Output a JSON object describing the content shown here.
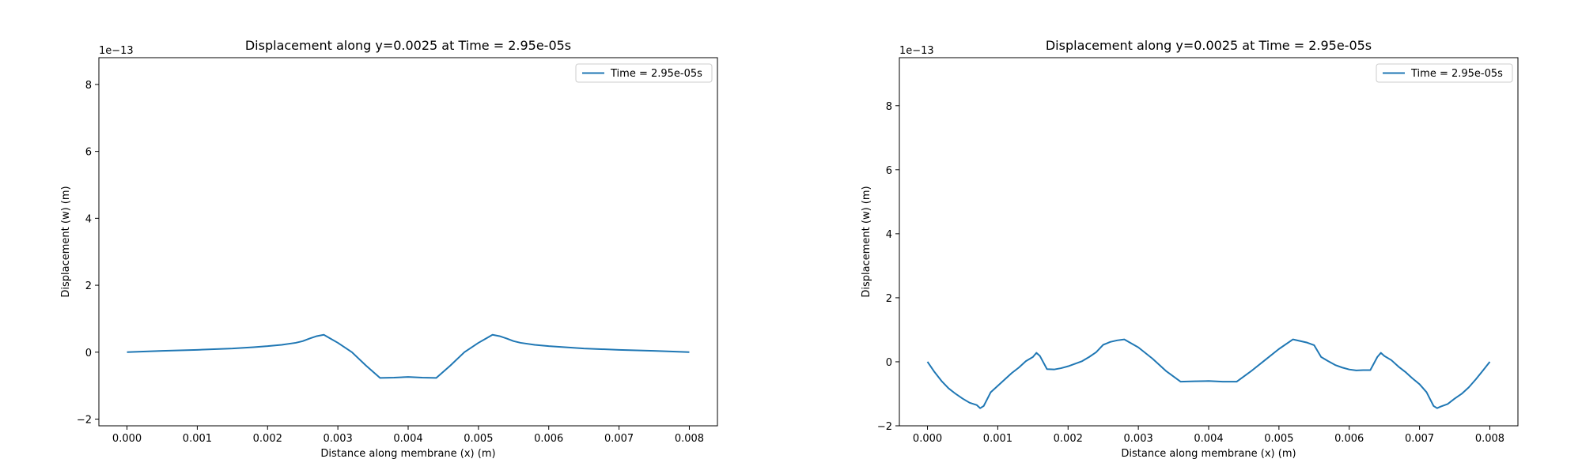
{
  "chart_data": [
    {
      "type": "line",
      "title": "Displacement along y=0.0025 at Time = 2.95e-05s",
      "xlabel": "Distance along membrane (x) (m)",
      "ylabel": "Displacement (w) (m)",
      "y_offset_label": "1e−13",
      "xlim": [
        -0.0004,
        0.0084
      ],
      "ylim": [
        -2.2,
        8.8
      ],
      "x_ticks": [
        0.0,
        0.001,
        0.002,
        0.003,
        0.004,
        0.005,
        0.006,
        0.007,
        0.008
      ],
      "x_tick_labels": [
        "0.000",
        "0.001",
        "0.002",
        "0.003",
        "0.004",
        "0.005",
        "0.006",
        "0.007",
        "0.008"
      ],
      "y_ticks": [
        -2,
        0,
        2,
        4,
        6,
        8
      ],
      "y_tick_labels": [
        "−2",
        "0",
        "2",
        "4",
        "6",
        "8"
      ],
      "grid": false,
      "legend": "upper right",
      "series": [
        {
          "name": "Time = 2.95e-05s",
          "color": "#1f77b4",
          "x": [
            0.0,
            0.0005,
            0.001,
            0.0015,
            0.0018,
            0.002,
            0.0022,
            0.0024,
            0.0025,
            0.0026,
            0.0027,
            0.0028,
            0.0029,
            0.003,
            0.0032,
            0.0034,
            0.0036,
            0.0038,
            0.004,
            0.0042,
            0.0044,
            0.0046,
            0.0048,
            0.005,
            0.0051,
            0.0052,
            0.0053,
            0.0054,
            0.0055,
            0.0056,
            0.0058,
            0.006,
            0.0065,
            0.007,
            0.0075,
            0.008
          ],
          "y": [
            0.0,
            0.04,
            0.07,
            0.11,
            0.15,
            0.18,
            0.22,
            0.28,
            0.33,
            0.41,
            0.48,
            0.52,
            0.4,
            0.28,
            0.0,
            -0.4,
            -0.77,
            -0.76,
            -0.74,
            -0.76,
            -0.77,
            -0.4,
            0.0,
            0.28,
            0.4,
            0.52,
            0.48,
            0.41,
            0.33,
            0.28,
            0.22,
            0.18,
            0.11,
            0.07,
            0.04,
            0.0
          ]
        }
      ]
    },
    {
      "type": "line",
      "title": "Displacement along y=0.0025 at Time = 2.95e-05s",
      "xlabel": "Distance along membrane (x) (m)",
      "ylabel": "Displacement (w) (m)",
      "y_offset_label": "1e−13",
      "xlim": [
        -0.0004,
        0.0084
      ],
      "ylim": [
        -2.0,
        9.5
      ],
      "x_ticks": [
        0.0,
        0.001,
        0.002,
        0.003,
        0.004,
        0.005,
        0.006,
        0.007,
        0.008
      ],
      "x_tick_labels": [
        "0.000",
        "0.001",
        "0.002",
        "0.003",
        "0.004",
        "0.005",
        "0.006",
        "0.007",
        "0.008"
      ],
      "y_ticks": [
        -2,
        0,
        2,
        4,
        6,
        8
      ],
      "y_tick_labels": [
        "−2",
        "0",
        "2",
        "4",
        "6",
        "8"
      ],
      "grid": false,
      "legend": "upper right",
      "series": [
        {
          "name": "Time = 2.95e-05s",
          "color": "#1f77b4",
          "x": [
            0.0,
            0.0001,
            0.0002,
            0.0003,
            0.0004,
            0.0005,
            0.0006,
            0.0007,
            0.00075,
            0.0008,
            0.0009,
            0.001,
            0.0011,
            0.0012,
            0.0013,
            0.0014,
            0.0015,
            0.00155,
            0.0016,
            0.0017,
            0.0018,
            0.0019,
            0.002,
            0.0021,
            0.0022,
            0.0023,
            0.0024,
            0.0025,
            0.0026,
            0.0027,
            0.0028,
            0.003,
            0.0032,
            0.0034,
            0.0036,
            0.0038,
            0.004,
            0.0042,
            0.0044,
            0.0046,
            0.0048,
            0.005,
            0.0052,
            0.0054,
            0.0055,
            0.0056,
            0.0057,
            0.0058,
            0.0059,
            0.006,
            0.0061,
            0.0062,
            0.0063,
            0.0064,
            0.00645,
            0.0065,
            0.0066,
            0.0067,
            0.0068,
            0.0069,
            0.007,
            0.0071,
            0.0072,
            0.00725,
            0.0073,
            0.0074,
            0.0075,
            0.0076,
            0.0077,
            0.0078,
            0.0079,
            0.008
          ],
          "y": [
            0.0,
            -0.32,
            -0.6,
            -0.83,
            -1.0,
            -1.15,
            -1.28,
            -1.35,
            -1.45,
            -1.38,
            -0.95,
            -0.75,
            -0.55,
            -0.35,
            -0.18,
            0.02,
            0.15,
            0.28,
            0.18,
            -0.23,
            -0.24,
            -0.2,
            -0.14,
            -0.06,
            0.02,
            0.15,
            0.3,
            0.53,
            0.62,
            0.67,
            0.7,
            0.45,
            0.1,
            -0.3,
            -0.62,
            -0.61,
            -0.6,
            -0.62,
            -0.62,
            -0.3,
            0.05,
            0.4,
            0.7,
            0.6,
            0.52,
            0.15,
            0.02,
            -0.1,
            -0.18,
            -0.24,
            -0.27,
            -0.26,
            -0.26,
            0.15,
            0.28,
            0.18,
            0.05,
            -0.15,
            -0.32,
            -0.52,
            -0.7,
            -0.95,
            -1.38,
            -1.45,
            -1.4,
            -1.32,
            -1.15,
            -1.0,
            -0.8,
            -0.55,
            -0.28,
            0.0
          ]
        }
      ]
    }
  ]
}
